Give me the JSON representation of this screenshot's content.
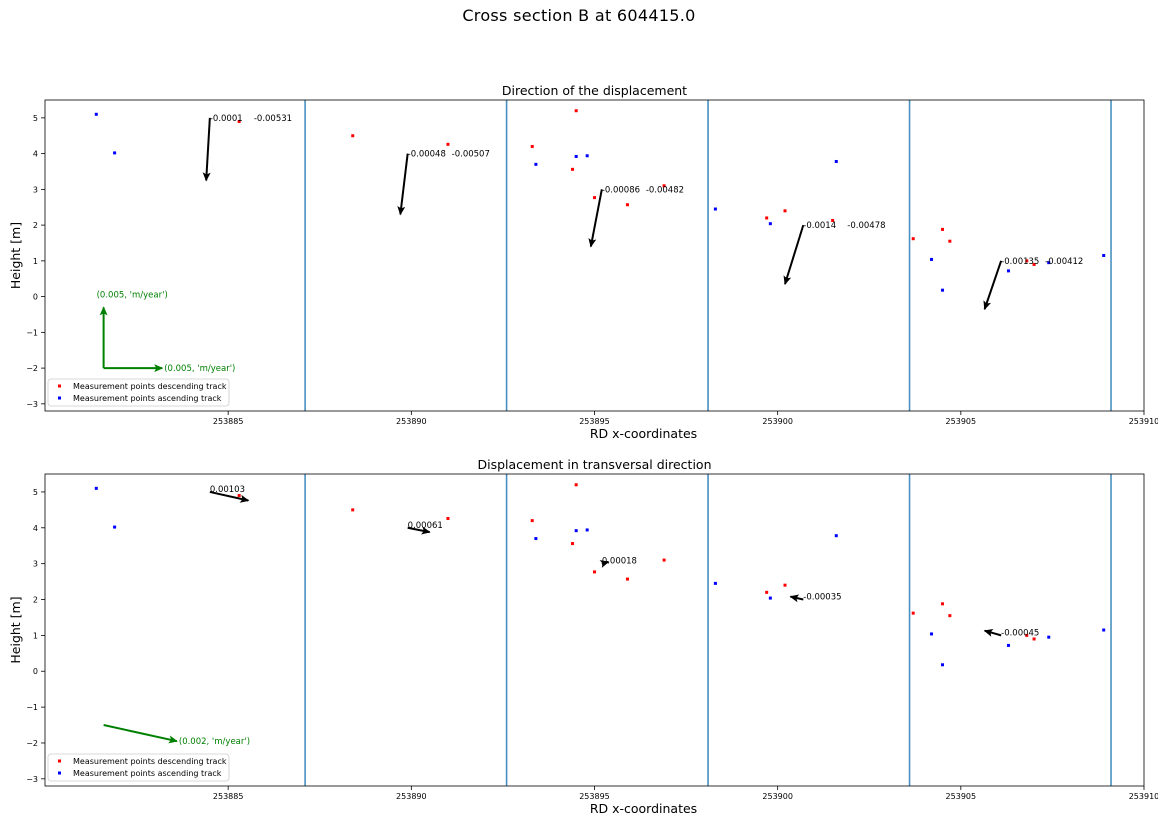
{
  "figure": {
    "title": "Cross section B at 604415.0"
  },
  "chart_data": [
    {
      "type": "scatter",
      "title": "Direction of the displacement",
      "xlabel": "RD x-coordinates",
      "ylabel": "Height [m]",
      "xlim": [
        253880.0,
        253910.0
      ],
      "ylim": [
        -3.2,
        5.5
      ],
      "xticks": [
        253885,
        253890,
        253895,
        253900,
        253905,
        253910
      ],
      "yticks": [
        -3,
        -2,
        -1,
        0,
        1,
        2,
        3,
        4,
        5
      ],
      "vertical_lines": [
        253887.1,
        253892.6,
        253898.1,
        253903.6,
        253909.1
      ],
      "series": [
        {
          "name": "Measurement points descending track",
          "color": "#ff0000",
          "points": [
            [
              253885.3,
              4.9
            ],
            [
              253888.4,
              4.5
            ],
            [
              253891.0,
              4.26
            ],
            [
              253893.3,
              4.2
            ],
            [
              253894.4,
              3.56
            ],
            [
              253894.5,
              5.2
            ],
            [
              253895.0,
              2.77
            ],
            [
              253895.9,
              2.57
            ],
            [
              253896.9,
              3.1
            ],
            [
              253899.7,
              2.2
            ],
            [
              253900.2,
              2.4
            ],
            [
              253901.5,
              2.13
            ],
            [
              253903.7,
              1.62
            ],
            [
              253904.5,
              1.88
            ],
            [
              253904.7,
              1.55
            ],
            [
              253906.8,
              1.0
            ],
            [
              253907.0,
              0.9
            ]
          ]
        },
        {
          "name": "Measurement points ascending track",
          "color": "#0000ff",
          "points": [
            [
              253881.4,
              5.1
            ],
            [
              253881.9,
              4.02
            ],
            [
              253893.4,
              3.7
            ],
            [
              253894.5,
              3.92
            ],
            [
              253894.8,
              3.94
            ],
            [
              253898.3,
              2.45
            ],
            [
              253899.8,
              2.04
            ],
            [
              253901.6,
              3.78
            ],
            [
              253904.2,
              1.04
            ],
            [
              253904.5,
              0.18
            ],
            [
              253906.3,
              0.72
            ],
            [
              253907.4,
              0.95
            ],
            [
              253908.9,
              1.15
            ]
          ]
        }
      ],
      "arrows": [
        {
          "x": 253884.5,
          "y": 5.0,
          "dx": -0.1,
          "dy": -1.75,
          "label_a": "-0.0001",
          "label_b": "-0.00531"
        },
        {
          "x": 253889.9,
          "y": 4.0,
          "dx": -0.2,
          "dy": -1.7,
          "label_a": "-0.00048",
          "label_b": "-0.00507"
        },
        {
          "x": 253895.2,
          "y": 3.0,
          "dx": -0.3,
          "dy": -1.6,
          "label_a": "-0.00086",
          "label_b": "-0.00482"
        },
        {
          "x": 253900.7,
          "y": 2.0,
          "dx": -0.5,
          "dy": -1.65,
          "label_a": "-0.0014",
          "label_b": "-0.00478"
        },
        {
          "x": 253906.1,
          "y": 1.0,
          "dx": -0.45,
          "dy": -1.35,
          "label_a": "-0.00135",
          "label_b": "-0.00412"
        }
      ],
      "scale_arrows": [
        {
          "x": 253881.6,
          "y": -2.0,
          "dx": 0,
          "dy": 1.7,
          "label": "(0.005, 'm/year')"
        },
        {
          "x": 253881.6,
          "y": -2.0,
          "dx": 1.6,
          "dy": 0,
          "label": "(0.005, 'm/year')"
        }
      ],
      "legend": {
        "position": "lower-left",
        "entries": [
          "Measurement points descending track",
          "Measurement points ascending track"
        ]
      }
    },
    {
      "type": "scatter",
      "title": "Displacement in transversal direction",
      "xlabel": "RD x-coordinates",
      "ylabel": "Height [m]",
      "xlim": [
        253880.0,
        253910.0
      ],
      "ylim": [
        -3.2,
        5.5
      ],
      "xticks": [
        253885,
        253890,
        253895,
        253900,
        253905,
        253910
      ],
      "yticks": [
        -3,
        -2,
        -1,
        0,
        1,
        2,
        3,
        4,
        5
      ],
      "vertical_lines": [
        253887.1,
        253892.6,
        253898.1,
        253903.6,
        253909.1
      ],
      "series": [
        {
          "name": "Measurement points descending track",
          "color": "#ff0000",
          "points": [
            [
              253885.3,
              4.9
            ],
            [
              253888.4,
              4.5
            ],
            [
              253891.0,
              4.26
            ],
            [
              253893.3,
              4.2
            ],
            [
              253894.4,
              3.56
            ],
            [
              253894.5,
              5.2
            ],
            [
              253895.0,
              2.77
            ],
            [
              253895.9,
              2.57
            ],
            [
              253896.9,
              3.1
            ],
            [
              253899.7,
              2.2
            ],
            [
              253900.2,
              2.4
            ],
            [
              253906.8,
              1.0
            ],
            [
              253907.0,
              0.9
            ],
            [
              253903.7,
              1.62
            ],
            [
              253904.5,
              1.88
            ],
            [
              253904.7,
              1.55
            ]
          ]
        },
        {
          "name": "Measurement points ascending track",
          "color": "#0000ff",
          "points": [
            [
              253881.4,
              5.1
            ],
            [
              253881.9,
              4.02
            ],
            [
              253893.4,
              3.7
            ],
            [
              253894.5,
              3.92
            ],
            [
              253894.8,
              3.94
            ],
            [
              253898.3,
              2.45
            ],
            [
              253899.8,
              2.04
            ],
            [
              253901.6,
              3.78
            ],
            [
              253904.2,
              1.04
            ],
            [
              253904.5,
              0.18
            ],
            [
              253906.3,
              0.72
            ],
            [
              253907.4,
              0.95
            ],
            [
              253908.9,
              1.15
            ]
          ]
        }
      ],
      "arrows": [
        {
          "x": 253884.5,
          "y": 5.0,
          "dx": 1.05,
          "dy": -0.24,
          "label": "0.00103"
        },
        {
          "x": 253889.9,
          "y": 4.0,
          "dx": 0.6,
          "dy": -0.12,
          "label": "0.00061"
        },
        {
          "x": 253895.2,
          "y": 3.0,
          "dx": 0.18,
          "dy": 0.05,
          "label": "0.00018"
        },
        {
          "x": 253900.7,
          "y": 2.0,
          "dx": -0.35,
          "dy": 0.08,
          "label": "-0.00035"
        },
        {
          "x": 253906.1,
          "y": 1.0,
          "dx": -0.45,
          "dy": 0.13,
          "label": "-0.00045"
        }
      ],
      "scale_arrows": [
        {
          "x": 253881.6,
          "y": -1.5,
          "dx": 2.0,
          "dy": -0.45,
          "label": "(0.002, 'm/year')"
        }
      ],
      "legend": {
        "position": "lower-left",
        "entries": [
          "Measurement points descending track",
          "Measurement points ascending track"
        ]
      }
    }
  ],
  "colors": {
    "frame": "#000000",
    "vline": "#4a90c0",
    "arrow": "#000000",
    "scale": "#008000",
    "descending": "#ff0000",
    "ascending": "#0000ff"
  }
}
